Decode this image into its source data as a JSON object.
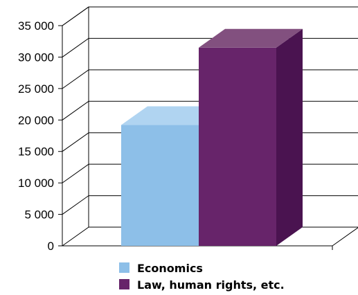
{
  "chart_data": {
    "type": "bar",
    "title": "",
    "xlabel": "",
    "ylabel": "",
    "ylim": [
      0,
      35000
    ],
    "yticks": [
      {
        "value": 0,
        "label": "0"
      },
      {
        "value": 5000,
        "label": "5 000"
      },
      {
        "value": 10000,
        "label": "10 000"
      },
      {
        "value": 15000,
        "label": "15 000"
      },
      {
        "value": 20000,
        "label": "20 000"
      },
      {
        "value": 25000,
        "label": "25 000"
      },
      {
        "value": 30000,
        "label": "30 000"
      },
      {
        "value": 35000,
        "label": "35 000"
      }
    ],
    "grid": true,
    "three_d": true,
    "legend_position": "bottom",
    "series": [
      {
        "name": "Economics",
        "value": 19200,
        "color": "#8dbfe8",
        "top_color": "#b0d4f1",
        "side_color": "#6f9fc8"
      },
      {
        "name": "Law, human rights, etc.",
        "value": 31500,
        "color": "#67246a",
        "top_color": "#82507f",
        "side_color": "#4a1350"
      }
    ]
  }
}
